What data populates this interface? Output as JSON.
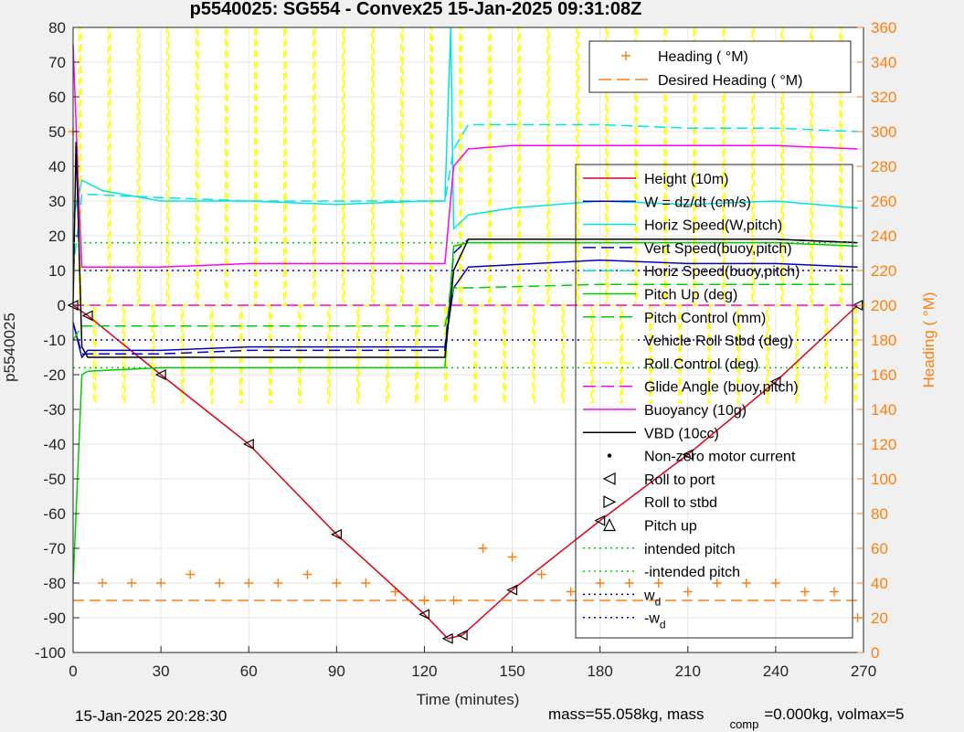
{
  "chart_data": {
    "type": "line",
    "title": "p5540025: SG554 - Convex25 15-Jan-2025 09:31:08Z",
    "xlabel": "Time (minutes)",
    "ylabel": "p5540025",
    "ylabel_right": "Heading ( °M)",
    "xlim": [
      0,
      270
    ],
    "ylim": [
      -100,
      80
    ],
    "ylim_right": [
      0,
      360
    ],
    "xticks": [
      "0",
      "30",
      "60",
      "90",
      "120",
      "150",
      "180",
      "210",
      "240",
      "270"
    ],
    "yticks": [
      "80",
      "70",
      "60",
      "50",
      "40",
      "30",
      "20",
      "10",
      "0",
      "-10",
      "-20",
      "-30",
      "-40",
      "-50",
      "-60",
      "-70",
      "-80",
      "-90",
      "-100"
    ],
    "yticks_right": [
      "360",
      "340",
      "320",
      "300",
      "280",
      "260",
      "240",
      "220",
      "200",
      "180",
      "160",
      "140",
      "120",
      "100",
      "80",
      "60",
      "40",
      "20",
      "0"
    ],
    "grid": true,
    "legend_top": [
      {
        "label": "Heading ( °M)",
        "color": "#ff7f0e",
        "style": "plus"
      },
      {
        "label": "Desired Heading ( °M)",
        "color": "#ff7f0e",
        "style": "dash"
      }
    ],
    "legend_main": [
      {
        "label": "Height (10m)",
        "color": "#e0001a",
        "style": "solid"
      },
      {
        "label": "W = dz/dt (cm/s)",
        "color": "#0000cc",
        "style": "solid"
      },
      {
        "label": "Horiz Speed(W,pitch)",
        "color": "#00e5e5",
        "style": "solid"
      },
      {
        "label": "Vert Speed(buoy,pitch)",
        "color": "#0000cc",
        "style": "dash"
      },
      {
        "label": "Horiz Speed(buoy,pitch)",
        "color": "#00e5e5",
        "style": "dash"
      },
      {
        "label": "Pitch Up (deg)",
        "color": "#00cc00",
        "style": "solid"
      },
      {
        "label": "Pitch Control (mm)",
        "color": "#00cc00",
        "style": "dash"
      },
      {
        "label": "Vehicle Roll Stbd (deg)",
        "color": "#ffff00",
        "style": "dot"
      },
      {
        "label": "Roll Control (deg)",
        "color": "#ffff00",
        "style": "dash"
      },
      {
        "label": "Glide Angle (buoy,pitch)",
        "color": "#ff00ff",
        "style": "dash"
      },
      {
        "label": "Buoyancy (10g)",
        "color": "#ff00ff",
        "style": "solid"
      },
      {
        "label": "VBD (10cc)",
        "color": "#000000",
        "style": "solid"
      },
      {
        "label": "Non-zero motor current",
        "color": "#000000",
        "style": "point"
      },
      {
        "label": "Roll to port",
        "color": "#000000",
        "style": "tri-left"
      },
      {
        "label": "Roll to stbd",
        "color": "#000000",
        "style": "tri-right"
      },
      {
        "label": "Pitch up",
        "color": "#000000",
        "style": "tri-up"
      },
      {
        "label": "intended pitch",
        "color": "#00cc00",
        "style": "dot"
      },
      {
        "label": "-intended pitch",
        "color": "#00cc00",
        "style": "dot"
      },
      {
        "label": "w",
        "sub": "d",
        "color": "#0000cc",
        "style": "dot"
      },
      {
        "label": "-w",
        "sub": "d",
        "color": "#0000cc",
        "style": "dot"
      }
    ],
    "series": [
      {
        "name": "Height (10m)",
        "x": [
          0,
          5,
          30,
          60,
          90,
          120,
          128,
          133,
          150,
          180,
          210,
          240,
          268
        ],
        "y": [
          0,
          -3,
          -20,
          -40,
          -66,
          -89,
          -96,
          -95,
          -82,
          -62,
          -43,
          -22,
          0
        ]
      },
      {
        "name": "W = dz/dt (cm/s)",
        "x": [
          0,
          3,
          5,
          30,
          60,
          90,
          120,
          127,
          130,
          135,
          180,
          210,
          240,
          268
        ],
        "y": [
          -5,
          -15,
          -13,
          -13,
          -12,
          -12,
          -12,
          -12,
          5,
          11,
          13,
          12,
          12,
          11
        ]
      },
      {
        "name": "Horiz Speed(W,pitch)",
        "x": [
          0,
          3,
          10,
          30,
          60,
          90,
          120,
          127,
          129,
          130,
          135,
          150,
          180,
          210,
          240,
          268
        ],
        "y": [
          25,
          36,
          33,
          30,
          30,
          29,
          30,
          30,
          80,
          22,
          26,
          28,
          30,
          29,
          30,
          28
        ]
      },
      {
        "name": "Vert Speed(buoy,pitch)",
        "x": [
          0,
          3,
          30,
          60,
          90,
          120,
          127,
          130,
          135,
          180,
          210,
          240,
          268
        ],
        "y": [
          -5,
          -14,
          -14,
          -13,
          -13,
          -13,
          -13,
          15,
          19,
          19,
          19,
          19,
          18
        ]
      },
      {
        "name": "Horiz Speed(buoy,pitch)",
        "x": [
          0,
          3,
          30,
          60,
          90,
          120,
          127,
          130,
          135,
          180,
          210,
          240,
          268
        ],
        "y": [
          10,
          32,
          31,
          30,
          30,
          30,
          30,
          45,
          52,
          52,
          51,
          51,
          50
        ]
      },
      {
        "name": "Pitch Up (deg)",
        "x": [
          0,
          3,
          5,
          30,
          60,
          90,
          120,
          127,
          130,
          135,
          180,
          210,
          240,
          268
        ],
        "y": [
          -80,
          -20,
          -19,
          -18,
          -18,
          -18,
          -18,
          -18,
          17,
          18,
          18,
          18,
          18,
          17
        ]
      },
      {
        "name": "Pitch Control (mm)",
        "x": [
          0,
          3,
          30,
          60,
          90,
          120,
          127,
          130,
          135,
          180,
          210,
          240,
          268
        ],
        "y": [
          -10,
          -6,
          -6,
          -6,
          -6,
          -6,
          -6,
          5,
          5,
          6,
          6,
          6,
          6
        ]
      },
      {
        "name": "Glide Angle (buoy,pitch)",
        "x": [
          0,
          3,
          30,
          60,
          90,
          120,
          127,
          130,
          135,
          180,
          210,
          240,
          268
        ],
        "y": [
          0,
          0,
          0,
          0,
          0,
          0,
          0,
          0,
          0,
          0,
          0,
          0,
          0
        ]
      },
      {
        "name": "Buoyancy (10g)",
        "x": [
          0,
          2,
          3,
          30,
          60,
          90,
          120,
          127,
          130,
          135,
          150,
          180,
          210,
          240,
          268
        ],
        "y": [
          75,
          30,
          11,
          11,
          12,
          12,
          12,
          12,
          40,
          45,
          46,
          46,
          46,
          46,
          45
        ]
      },
      {
        "name": "VBD (10cc)",
        "x": [
          0,
          1,
          3,
          5,
          30,
          60,
          90,
          120,
          127,
          130,
          135,
          180,
          210,
          240,
          268
        ],
        "y": [
          0,
          47,
          -12,
          -15,
          -15,
          -15,
          -15,
          -15,
          -15,
          10,
          19,
          19,
          19,
          19,
          18
        ]
      },
      {
        "name": "intended pitch",
        "x": [
          0,
          268
        ],
        "y": [
          18,
          18
        ]
      },
      {
        "name": "-intended pitch",
        "x": [
          0,
          268
        ],
        "y": [
          -18,
          -18
        ]
      },
      {
        "name": "w_d",
        "x": [
          0,
          268
        ],
        "y": [
          10,
          10
        ]
      },
      {
        "name": "-w_d",
        "x": [
          0,
          268
        ],
        "y": [
          -10,
          -10
        ]
      },
      {
        "name": "Heading ( °M)",
        "axis": "right",
        "x": [
          0,
          10,
          20,
          30,
          40,
          50,
          60,
          70,
          80,
          90,
          100,
          110,
          120,
          130,
          140,
          150,
          160,
          170,
          180,
          190,
          200,
          210,
          220,
          230,
          240,
          250,
          260,
          268
        ],
        "y": [
          300,
          40,
          40,
          40,
          45,
          40,
          40,
          40,
          45,
          40,
          40,
          35,
          30,
          30,
          60,
          55,
          45,
          35,
          40,
          40,
          40,
          35,
          40,
          40,
          40,
          35,
          35,
          20
        ]
      },
      {
        "name": "Desired Heading ( °M)",
        "axis": "right",
        "x": [
          0,
          268
        ],
        "y": [
          30,
          30
        ]
      }
    ],
    "roll_control": {
      "baseline": 0,
      "pulse_high": 80,
      "pulse_low": -28,
      "pulse_period_min": 5
    }
  },
  "footer": {
    "timestamp": "15-Jan-2025 20:28:30",
    "mass_text": "mass=55.058kg, mass",
    "comp_sub": "comp",
    "comp_text": "=0.000kg, volmax=5"
  }
}
